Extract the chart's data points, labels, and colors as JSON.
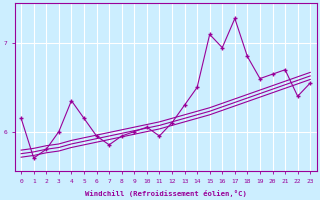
{
  "xlabel": "Windchill (Refroidissement éolien,°C)",
  "ylabel": "",
  "bg_color": "#cceeff",
  "line_color": "#990099",
  "grid_color": "#ffffff",
  "x_ticks": [
    0,
    1,
    2,
    3,
    4,
    5,
    6,
    7,
    8,
    9,
    10,
    11,
    12,
    13,
    14,
    15,
    16,
    17,
    18,
    19,
    20,
    21,
    22,
    23
  ],
  "y_ticks": [
    6,
    7
  ],
  "xlim": [
    -0.5,
    23.5
  ],
  "ylim": [
    5.55,
    7.45
  ],
  "main_x": [
    0,
    1,
    2,
    3,
    4,
    5,
    6,
    7,
    8,
    9,
    10,
    11,
    12,
    13,
    14,
    15,
    16,
    17,
    18,
    19,
    20,
    21,
    22,
    23
  ],
  "main_y": [
    6.15,
    5.7,
    5.8,
    6.0,
    6.35,
    6.15,
    5.95,
    5.85,
    5.95,
    6.0,
    6.05,
    5.95,
    6.1,
    6.3,
    6.5,
    7.1,
    6.95,
    7.28,
    6.85,
    6.6,
    6.65,
    6.7,
    6.4,
    6.55
  ],
  "line1_x": [
    0,
    1,
    2,
    3,
    4,
    5,
    6,
    7,
    8,
    9,
    10,
    11,
    12,
    13,
    14,
    15,
    16,
    17,
    18,
    19,
    20,
    21,
    22,
    23
  ],
  "line1_y": [
    5.71,
    5.73,
    5.76,
    5.78,
    5.82,
    5.85,
    5.88,
    5.91,
    5.94,
    5.97,
    6.0,
    6.03,
    6.07,
    6.11,
    6.15,
    6.19,
    6.24,
    6.29,
    6.34,
    6.39,
    6.44,
    6.49,
    6.54,
    6.59
  ],
  "line2_x": [
    0,
    1,
    2,
    3,
    4,
    5,
    6,
    7,
    8,
    9,
    10,
    11,
    12,
    13,
    14,
    15,
    16,
    17,
    18,
    19,
    20,
    21,
    22,
    23
  ],
  "line2_y": [
    5.75,
    5.77,
    5.8,
    5.82,
    5.86,
    5.89,
    5.92,
    5.95,
    5.98,
    6.01,
    6.04,
    6.07,
    6.11,
    6.15,
    6.19,
    6.23,
    6.28,
    6.33,
    6.38,
    6.43,
    6.48,
    6.53,
    6.58,
    6.63
  ],
  "line3_x": [
    0,
    1,
    2,
    3,
    4,
    5,
    6,
    7,
    8,
    9,
    10,
    11,
    12,
    13,
    14,
    15,
    16,
    17,
    18,
    19,
    20,
    21,
    22,
    23
  ],
  "line3_y": [
    5.79,
    5.81,
    5.84,
    5.86,
    5.9,
    5.93,
    5.96,
    5.99,
    6.02,
    6.05,
    6.08,
    6.11,
    6.15,
    6.19,
    6.23,
    6.27,
    6.32,
    6.37,
    6.42,
    6.47,
    6.52,
    6.57,
    6.62,
    6.67
  ]
}
